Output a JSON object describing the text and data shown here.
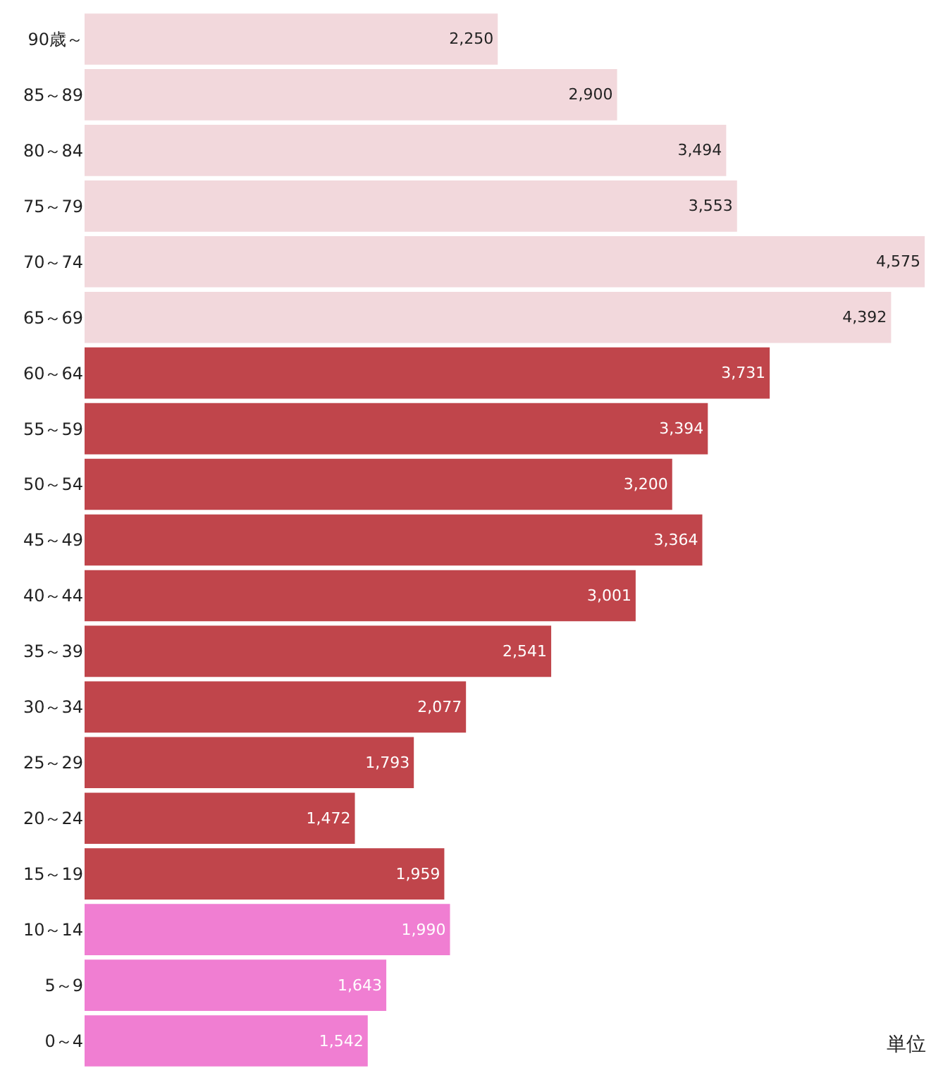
{
  "chart_data": {
    "type": "bar",
    "orientation": "horizontal",
    "categories": [
      "90歳～",
      "85～89",
      "80～84",
      "75～79",
      "70～74",
      "65～69",
      "60～64",
      "55～59",
      "50～54",
      "45～49",
      "40～44",
      "35～39",
      "30～34",
      "25～29",
      "20～24",
      "15～19",
      "10～14",
      "5～9",
      "0～4"
    ],
    "values": [
      2250,
      2900,
      3494,
      3553,
      4575,
      4392,
      3731,
      3394,
      3200,
      3364,
      3001,
      2541,
      2077,
      1793,
      1472,
      1959,
      1990,
      1643,
      1542
    ],
    "colors": [
      "#f2d8dc",
      "#f2d8dc",
      "#f2d8dc",
      "#f2d8dc",
      "#f2d8dc",
      "#f2d8dc",
      "#c0454b",
      "#c0454b",
      "#c0454b",
      "#c0454b",
      "#c0454b",
      "#c0454b",
      "#c0454b",
      "#c0454b",
      "#c0454b",
      "#c0454b",
      "#f07ed2",
      "#f07ed2",
      "#f07ed2"
    ],
    "value_labels": [
      "2,250",
      "2,900",
      "3,494",
      "3,553",
      "4,575",
      "4,392",
      "3,731",
      "3,394",
      "3,200",
      "3,364",
      "3,001",
      "2,541",
      "2,077",
      "1,793",
      "1,472",
      "1,959",
      "1,990",
      "1,643",
      "1,542"
    ],
    "tick_labels": "y",
    "annotations": [
      "単位"
    ]
  }
}
